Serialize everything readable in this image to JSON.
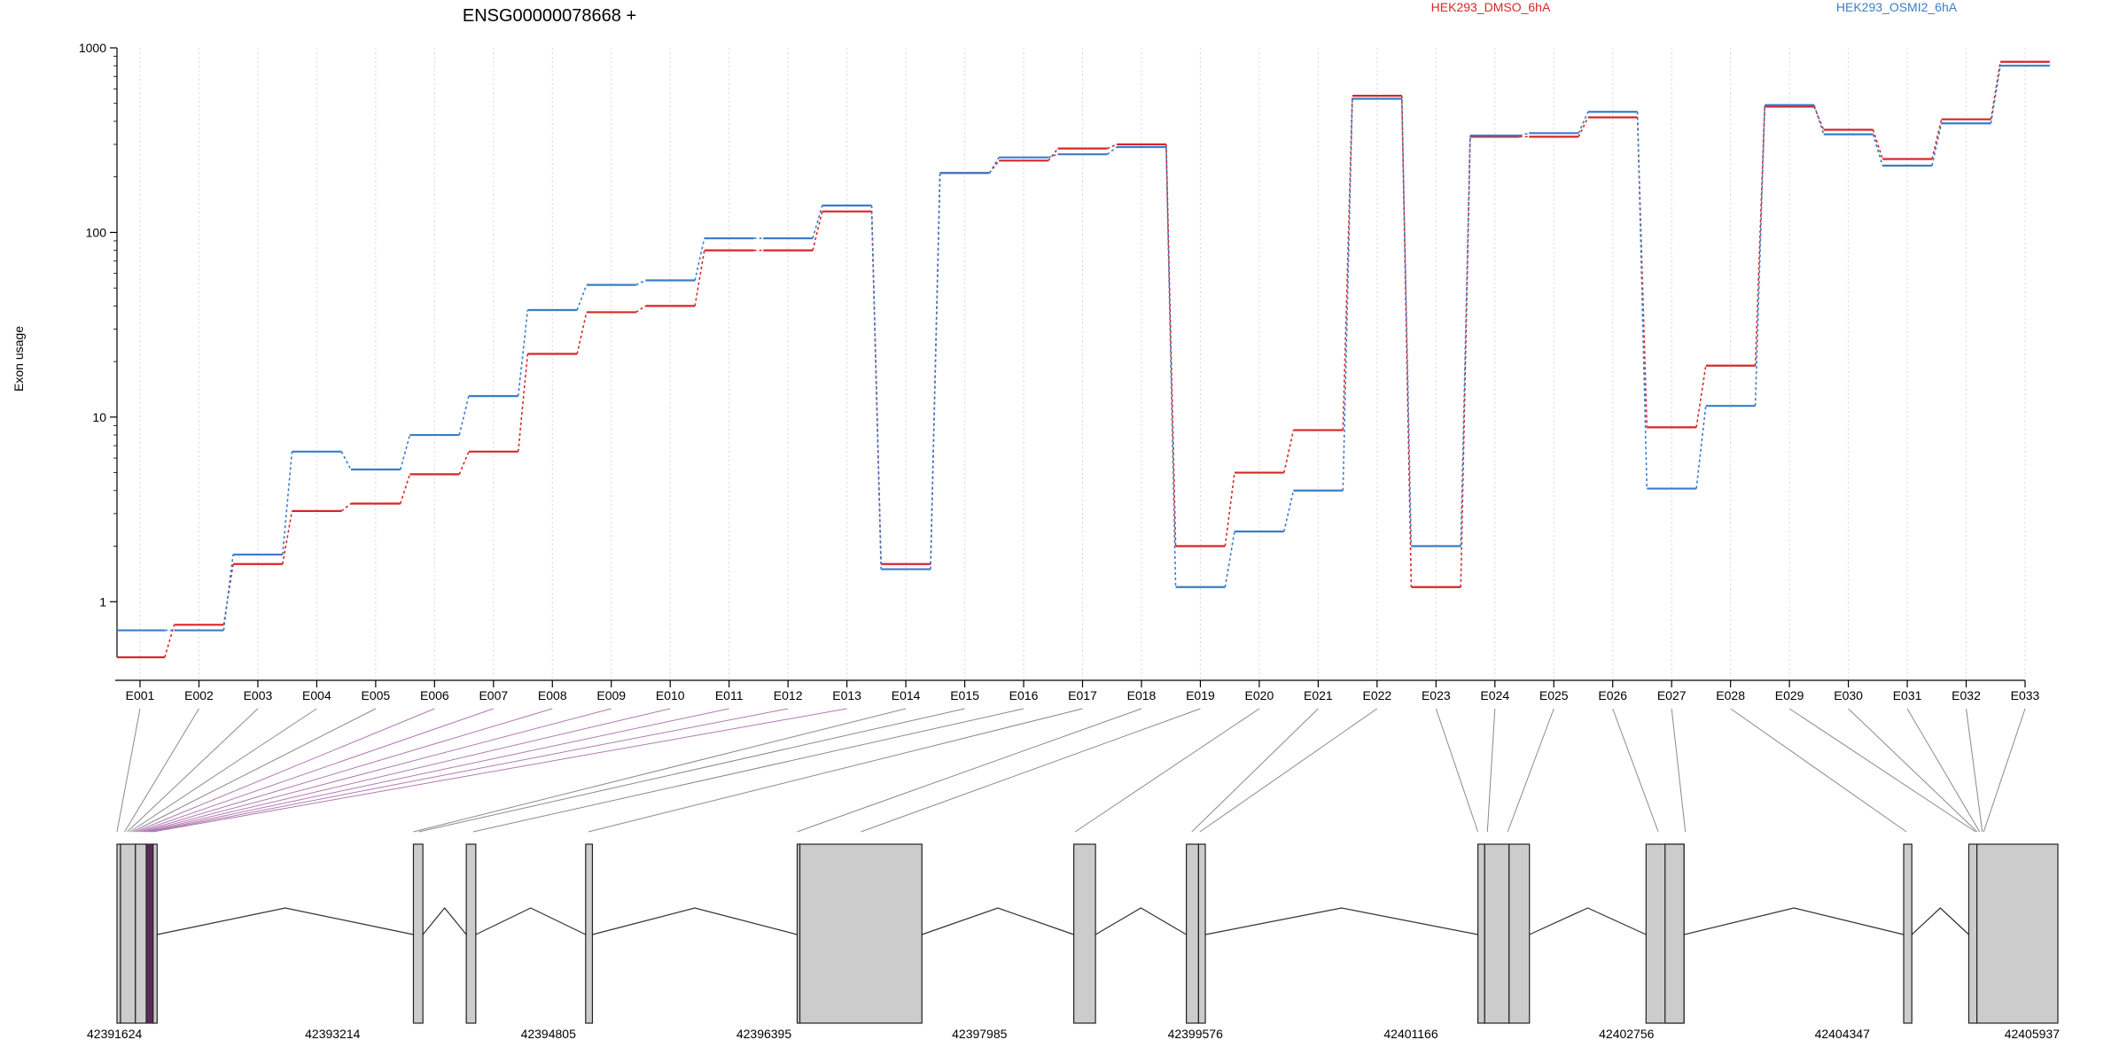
{
  "title": "ENSG00000078668 +",
  "chart_data": {
    "type": "line",
    "title": "ENSG00000078668 +",
    "ylabel": "Exon usage",
    "xlabel": "",
    "y_scale": "log",
    "ylim": [
      0.5,
      1000
    ],
    "y_ticks": [
      1,
      10,
      100,
      1000
    ],
    "y_tick_labels": [
      "1",
      "10",
      "100",
      "1000"
    ],
    "legend_position": "top-right",
    "grid": "vertical dotted lines at each exon",
    "categories": [
      "E001",
      "E002",
      "E003",
      "E004",
      "E005",
      "E006",
      "E007",
      "E008",
      "E009",
      "E010",
      "E011",
      "E012",
      "E013",
      "E014",
      "E015",
      "E016",
      "E017",
      "E018",
      "E019",
      "E020",
      "E021",
      "E022",
      "E023",
      "E024",
      "E025",
      "E026",
      "E027",
      "E028",
      "E029",
      "E030",
      "E031",
      "E032",
      "E033"
    ],
    "series": [
      {
        "name": "HEK293_DMSO_6hA",
        "color": "#d62728",
        "values": [
          0.5,
          0.75,
          1.6,
          3.1,
          3.4,
          4.9,
          6.5,
          22,
          37,
          40,
          80,
          80,
          130,
          1.6,
          210,
          245,
          285,
          300,
          2.0,
          5.0,
          8.5,
          550,
          1.2,
          330,
          330,
          420,
          8.8,
          19,
          480,
          360,
          250,
          410,
          840
        ]
      },
      {
        "name": "HEK293_OSMI2_6hA",
        "color": "#3a7dc9",
        "values": [
          0.7,
          0.7,
          1.8,
          6.5,
          5.2,
          8.0,
          13,
          38,
          52,
          55,
          93,
          93,
          140,
          1.5,
          210,
          255,
          265,
          290,
          1.2,
          2.4,
          4.0,
          530,
          2.0,
          335,
          345,
          450,
          4.1,
          11.5,
          490,
          340,
          230,
          390,
          800
        ]
      }
    ],
    "gene_model": {
      "genomic_ticks": [
        "42391624",
        "42393214",
        "42394805",
        "42396395",
        "42397985",
        "42399576",
        "42401166",
        "42402756",
        "42404347",
        "42405937"
      ],
      "range": [
        42391624,
        42405937
      ],
      "exon_blocks": [
        [
          42391624,
          42391650
        ],
        [
          42391650,
          42391760
        ],
        [
          42391760,
          42391840
        ],
        [
          42391840,
          42391890
        ],
        [
          42391890,
          42391920
        ],
        [
          42393810,
          42393880
        ],
        [
          42394200,
          42394270
        ],
        [
          42395080,
          42395130
        ],
        [
          42396640,
          42396660
        ],
        [
          42396660,
          42397560
        ],
        [
          42398680,
          42398840
        ],
        [
          42399510,
          42399600
        ],
        [
          42399600,
          42399650
        ],
        [
          42401660,
          42401710
        ],
        [
          42401710,
          42401890
        ],
        [
          42401890,
          42402040
        ],
        [
          42402900,
          42403180
        ],
        [
          42403180,
          42403040
        ],
        [
          42404800,
          42404860
        ],
        [
          42405280,
          42405340
        ],
        [
          42405340,
          42405937
        ]
      ],
      "highlighted_block": [
        42391840,
        42391890
      ],
      "introns": [
        [
          42391920,
          42393810
        ],
        [
          42393880,
          42394200
        ],
        [
          42394270,
          42395080
        ],
        [
          42395130,
          42396640
        ],
        [
          42397560,
          42398680
        ],
        [
          42398840,
          42399510
        ],
        [
          42399650,
          42401660
        ],
        [
          42402040,
          42402900
        ],
        [
          42403180,
          42404800
        ],
        [
          42404860,
          42405280
        ]
      ],
      "exon_to_genomic": [
        42391624,
        42391680,
        42391700,
        42391720,
        42391740,
        42391760,
        42391780,
        42391800,
        42391820,
        42391840,
        42391860,
        42391875,
        42391890,
        42393810,
        42393850,
        42394250,
        42395100,
        42396640,
        42397110,
        42398690,
        42399550,
        42399610,
        42401660,
        42401730,
        42401880,
        42402990,
        42403190,
        42404820,
        42405330,
        42405342,
        42405360,
        42405380,
        42405390
      ]
    }
  }
}
